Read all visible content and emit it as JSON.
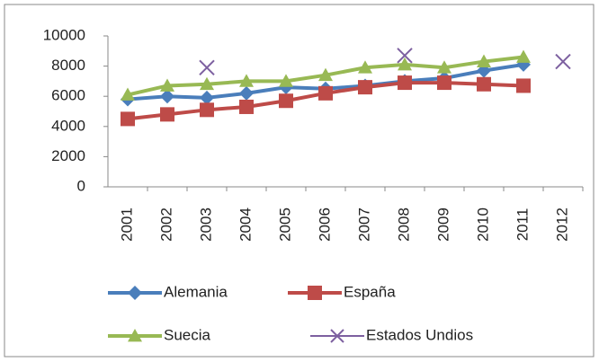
{
  "chart_data": {
    "type": "line",
    "categories": [
      "2001",
      "2002",
      "2003",
      "2004",
      "2005",
      "2006",
      "2007",
      "2008",
      "2009",
      "2010",
      "2011",
      "2012"
    ],
    "series": [
      {
        "name": "Alemania",
        "color": "#4a7ebb",
        "marker": "diamond",
        "values": [
          5800,
          6000,
          5900,
          6200,
          6600,
          6500,
          6700,
          7000,
          7200,
          7700,
          8100,
          null
        ]
      },
      {
        "name": "España",
        "color": "#be4b48",
        "marker": "square",
        "values": [
          4500,
          4800,
          5100,
          5300,
          5700,
          6200,
          6600,
          6900,
          6900,
          6800,
          6700,
          null
        ]
      },
      {
        "name": "Suecia",
        "color": "#98b954",
        "marker": "triangle",
        "values": [
          6100,
          6700,
          6800,
          7000,
          7000,
          7400,
          7900,
          8100,
          7900,
          8300,
          8600,
          null
        ]
      },
      {
        "name": "Estados Undios",
        "color": "#7d60a0",
        "marker": "x",
        "values": [
          null,
          null,
          7900,
          null,
          null,
          null,
          null,
          8700,
          null,
          null,
          null,
          8300
        ]
      }
    ],
    "ylim": [
      0,
      10000
    ],
    "yticks": [
      0,
      2000,
      4000,
      6000,
      8000,
      10000
    ],
    "grid": false,
    "legend": "bottom"
  }
}
